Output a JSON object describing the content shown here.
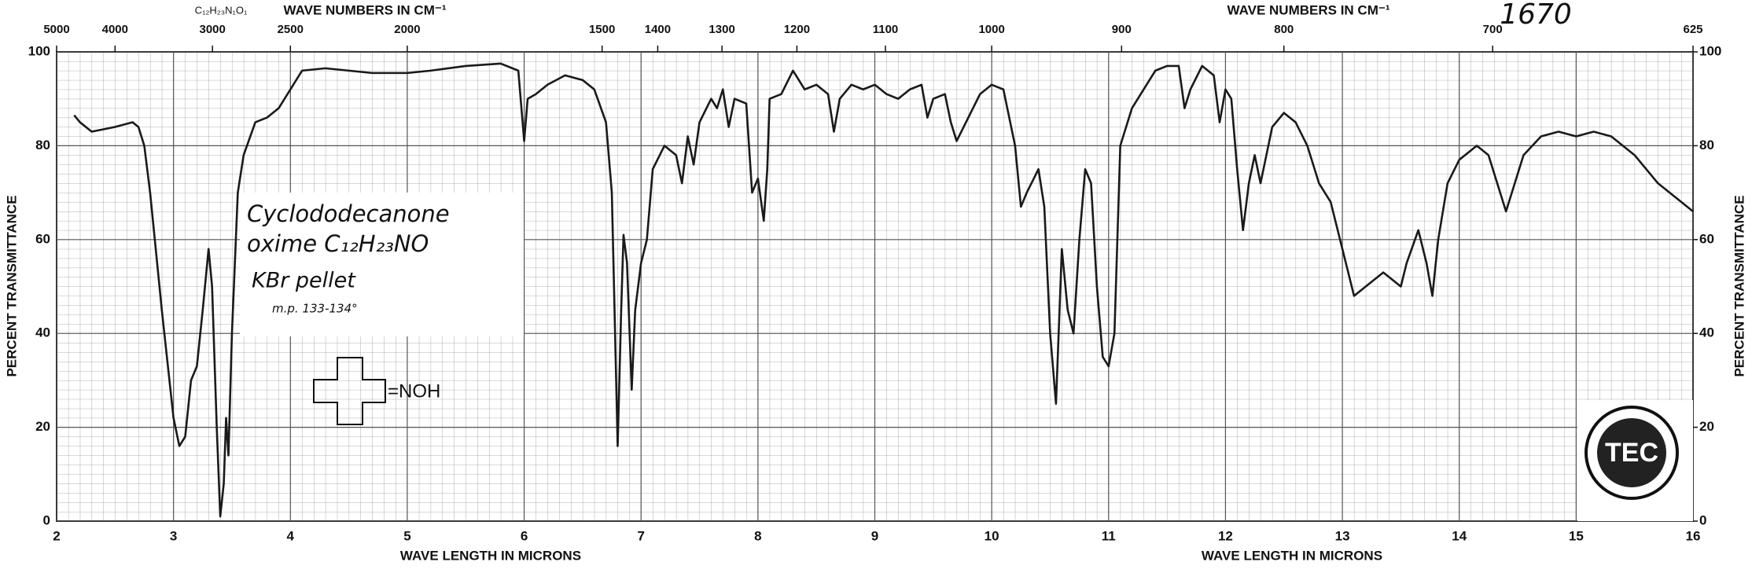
{
  "chart_data": {
    "type": "line",
    "xlabel": "WAVE LENGTH IN MICRONS",
    "x2label": "WAVE NUMBERS IN CM⁻¹",
    "ylabel": "PERCENT TRANSMITTANCE",
    "formula_label": "C₁₂H₂₃N₁O₁",
    "spectrum_number": "1670",
    "annotations": [
      "Cyclododecanone",
      "oxime C₁₂H₂₃NO",
      "KBr pellet",
      "m.p. 133-134°",
      "=NOH"
    ],
    "logo": "TEC",
    "color": "#1a1a1a",
    "grid": true,
    "x": [
      2.15,
      2.2,
      2.3,
      2.5,
      2.65,
      2.7,
      2.75,
      2.8,
      2.9,
      3.0,
      3.05,
      3.1,
      3.15,
      3.2,
      3.25,
      3.3,
      3.33,
      3.37,
      3.4,
      3.43,
      3.45,
      3.47,
      3.5,
      3.55,
      3.6,
      3.7,
      3.8,
      3.9,
      4.0,
      4.1,
      4.3,
      4.5,
      4.7,
      5.0,
      5.2,
      5.5,
      5.8,
      5.95,
      6.0,
      6.03,
      6.1,
      6.2,
      6.35,
      6.5,
      6.6,
      6.7,
      6.75,
      6.8,
      6.83,
      6.85,
      6.88,
      6.92,
      6.95,
      7.0,
      7.05,
      7.1,
      7.2,
      7.3,
      7.35,
      7.4,
      7.45,
      7.5,
      7.6,
      7.65,
      7.7,
      7.75,
      7.8,
      7.9,
      7.95,
      8.0,
      8.05,
      8.08,
      8.1,
      8.2,
      8.3,
      8.4,
      8.5,
      8.6,
      8.65,
      8.7,
      8.8,
      8.9,
      9.0,
      9.1,
      9.2,
      9.3,
      9.4,
      9.45,
      9.5,
      9.6,
      9.65,
      9.7,
      9.8,
      9.9,
      10.0,
      10.1,
      10.2,
      10.25,
      10.3,
      10.4,
      10.45,
      10.5,
      10.55,
      10.6,
      10.65,
      10.7,
      10.75,
      10.8,
      10.85,
      10.9,
      10.95,
      11.0,
      11.05,
      11.1,
      11.2,
      11.4,
      11.5,
      11.6,
      11.65,
      11.7,
      11.8,
      11.9,
      11.95,
      12.0,
      12.05,
      12.1,
      12.15,
      12.2,
      12.25,
      12.3,
      12.4,
      12.5,
      12.6,
      12.7,
      12.8,
      12.9,
      13.0,
      13.1,
      13.2,
      13.35,
      13.5,
      13.55,
      13.65,
      13.72,
      13.77,
      13.82,
      13.9,
      14.0,
      14.15,
      14.25,
      14.35,
      14.4,
      14.45,
      14.55,
      14.7,
      14.85,
      15.0,
      15.15,
      15.3,
      15.5,
      15.7,
      15.9,
      16.0
    ],
    "values": [
      86.5,
      85,
      83,
      84,
      85,
      84,
      80,
      70,
      45,
      22,
      16,
      18,
      30,
      33,
      45,
      58,
      50,
      20,
      1,
      8,
      22,
      14,
      40,
      70,
      78,
      85,
      86,
      88,
      92,
      96,
      96.5,
      96,
      95.5,
      95.5,
      96,
      97,
      97.5,
      96,
      81,
      90,
      91,
      93,
      95,
      94,
      92,
      85,
      70,
      16,
      45,
      61,
      55,
      28,
      45,
      55,
      60,
      75,
      80,
      78,
      72,
      82,
      76,
      85,
      90,
      88,
      92,
      84,
      90,
      89,
      70,
      73,
      64,
      75,
      90,
      91,
      96,
      92,
      93,
      91,
      83,
      90,
      93,
      92,
      93,
      91,
      90,
      92,
      93,
      86,
      90,
      91,
      85,
      81,
      86,
      91,
      93,
      92,
      80,
      67,
      70,
      75,
      67,
      40,
      25,
      58,
      45,
      40,
      60,
      75,
      72,
      50,
      35,
      33,
      40,
      80,
      88,
      96,
      97,
      97,
      88,
      92,
      97,
      95,
      85,
      92,
      90,
      75,
      62,
      72,
      78,
      72,
      84,
      87,
      85,
      80,
      72,
      68,
      58,
      48,
      50,
      53,
      50,
      55,
      62,
      55,
      48,
      60,
      72,
      77,
      80,
      78,
      70,
      66,
      70,
      78,
      82,
      83,
      82,
      83,
      82,
      78,
      72,
      68,
      66
    ],
    "xlim": [
      2,
      16
    ],
    "xticks": [
      2,
      3,
      4,
      5,
      6,
      7,
      8,
      9,
      10,
      11,
      12,
      13,
      14,
      15,
      16
    ],
    "x2ticks": [
      5000,
      4000,
      3000,
      2500,
      2000,
      1500,
      1400,
      1300,
      1200,
      1100,
      1000,
      900,
      800,
      700,
      625
    ],
    "ylim": [
      0,
      100
    ],
    "yticks": [
      0,
      20,
      40,
      60,
      80,
      100
    ],
    "y2lim": [
      0,
      100
    ],
    "y2ticks": [
      0,
      20,
      40,
      60,
      80,
      100
    ]
  }
}
